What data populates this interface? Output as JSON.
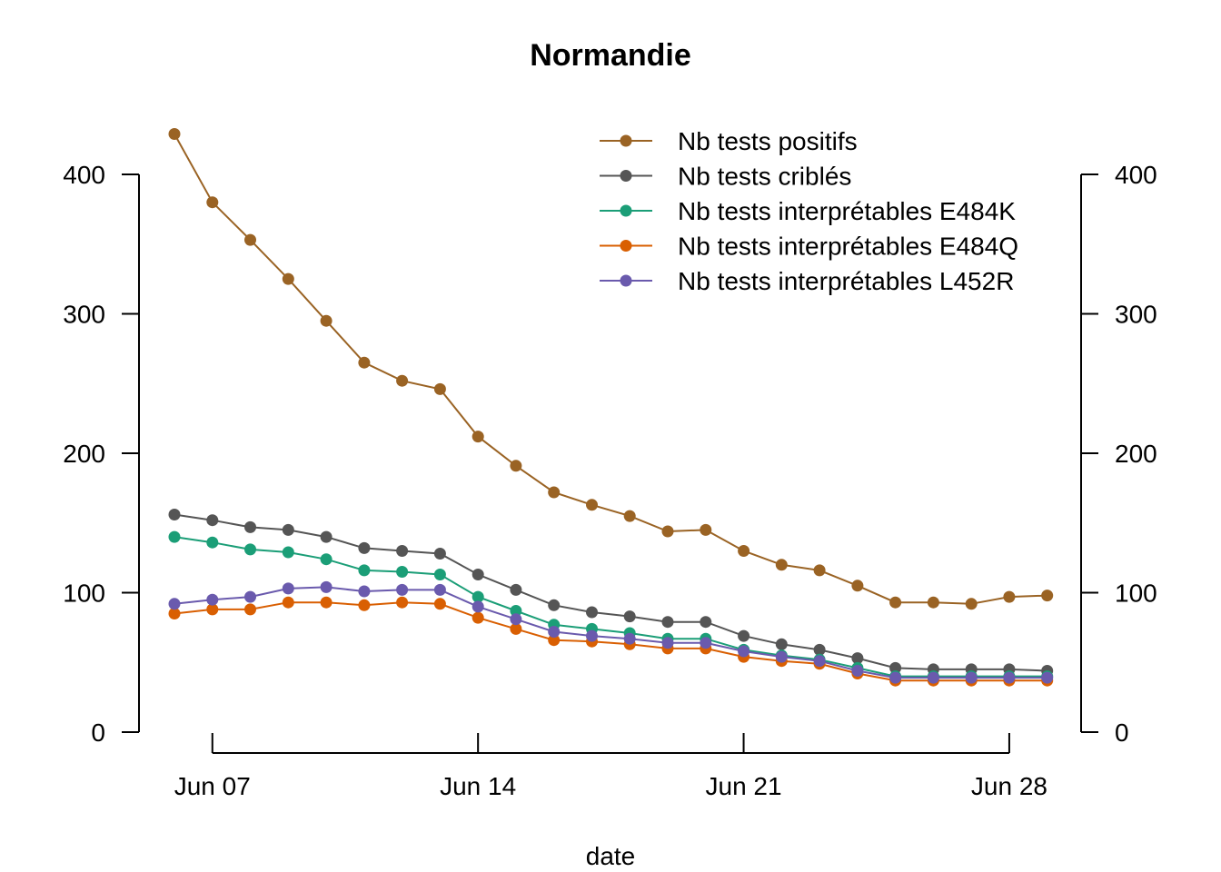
{
  "chart_data": {
    "type": "line",
    "title": "Normandie",
    "xlabel": "date",
    "ylabel": "",
    "ylim": [
      0,
      400
    ],
    "y_ticks": [
      0,
      100,
      200,
      300,
      400
    ],
    "x_ticks": [
      {
        "date": "2021-06-07",
        "label": "Jun 07"
      },
      {
        "date": "2021-06-14",
        "label": "Jun 14"
      },
      {
        "date": "2021-06-21",
        "label": "Jun 21"
      },
      {
        "date": "2021-06-28",
        "label": "Jun 28"
      }
    ],
    "x": [
      "2021-06-06",
      "2021-06-07",
      "2021-06-08",
      "2021-06-09",
      "2021-06-10",
      "2021-06-11",
      "2021-06-12",
      "2021-06-13",
      "2021-06-14",
      "2021-06-15",
      "2021-06-16",
      "2021-06-17",
      "2021-06-18",
      "2021-06-19",
      "2021-06-20",
      "2021-06-21",
      "2021-06-22",
      "2021-06-23",
      "2021-06-24",
      "2021-06-25",
      "2021-06-26",
      "2021-06-27",
      "2021-06-28",
      "2021-06-29"
    ],
    "legend_position": "top-right",
    "series": [
      {
        "name": "Nb tests positifs",
        "color": "#9a6324",
        "values": [
          429,
          380,
          353,
          325,
          295,
          265,
          252,
          246,
          212,
          191,
          172,
          163,
          155,
          144,
          145,
          130,
          120,
          116,
          105,
          93,
          93,
          92,
          97,
          98
        ]
      },
      {
        "name": "Nb tests criblés",
        "color": "#555555",
        "values": [
          156,
          152,
          147,
          145,
          140,
          132,
          130,
          128,
          113,
          102,
          91,
          86,
          83,
          79,
          79,
          69,
          63,
          59,
          53,
          46,
          45,
          45,
          45,
          44
        ]
      },
      {
        "name": "Nb tests interprétables E484K",
        "color": "#1b9e77",
        "values": [
          140,
          136,
          131,
          129,
          124,
          116,
          115,
          113,
          97,
          87,
          77,
          74,
          71,
          67,
          67,
          59,
          55,
          52,
          46,
          40,
          40,
          40,
          40,
          40
        ]
      },
      {
        "name": "Nb tests interprétables E484Q",
        "color": "#d95f02",
        "values": [
          85,
          88,
          88,
          93,
          93,
          91,
          93,
          92,
          82,
          74,
          66,
          65,
          63,
          60,
          60,
          54,
          51,
          49,
          42,
          37,
          37,
          37,
          37,
          37
        ]
      },
      {
        "name": "Nb tests interprétables L452R",
        "color": "#6a5aad",
        "values": [
          92,
          95,
          97,
          103,
          104,
          101,
          102,
          102,
          90,
          81,
          72,
          69,
          67,
          64,
          64,
          58,
          54,
          51,
          44,
          39,
          39,
          39,
          39,
          39
        ]
      }
    ]
  }
}
